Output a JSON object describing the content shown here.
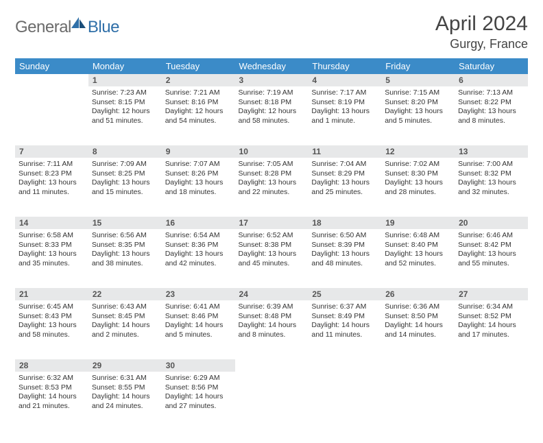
{
  "logo": {
    "general": "General",
    "blue": "Blue"
  },
  "title": "April 2024",
  "location": "Gurgy, France",
  "colors": {
    "header_bg": "#3b8bc8",
    "header_text": "#ffffff",
    "daynum_bg": "#e7e8e9",
    "rule": "#1a3a5c",
    "body_text": "#333333",
    "logo_gray": "#6b6b6b",
    "logo_blue": "#2f6fa8",
    "page_bg": "#ffffff"
  },
  "fonts": {
    "title_size": 30,
    "location_size": 18,
    "header_size": 13,
    "daynum_size": 12,
    "cell_size": 10.5
  },
  "weekdays": [
    "Sunday",
    "Monday",
    "Tuesday",
    "Wednesday",
    "Thursday",
    "Friday",
    "Saturday"
  ],
  "weeks": [
    [
      null,
      {
        "n": "1",
        "sr": "Sunrise: 7:23 AM",
        "ss": "Sunset: 8:15 PM",
        "dl": "Daylight: 12 hours and 51 minutes."
      },
      {
        "n": "2",
        "sr": "Sunrise: 7:21 AM",
        "ss": "Sunset: 8:16 PM",
        "dl": "Daylight: 12 hours and 54 minutes."
      },
      {
        "n": "3",
        "sr": "Sunrise: 7:19 AM",
        "ss": "Sunset: 8:18 PM",
        "dl": "Daylight: 12 hours and 58 minutes."
      },
      {
        "n": "4",
        "sr": "Sunrise: 7:17 AM",
        "ss": "Sunset: 8:19 PM",
        "dl": "Daylight: 13 hours and 1 minute."
      },
      {
        "n": "5",
        "sr": "Sunrise: 7:15 AM",
        "ss": "Sunset: 8:20 PM",
        "dl": "Daylight: 13 hours and 5 minutes."
      },
      {
        "n": "6",
        "sr": "Sunrise: 7:13 AM",
        "ss": "Sunset: 8:22 PM",
        "dl": "Daylight: 13 hours and 8 minutes."
      }
    ],
    [
      {
        "n": "7",
        "sr": "Sunrise: 7:11 AM",
        "ss": "Sunset: 8:23 PM",
        "dl": "Daylight: 13 hours and 11 minutes."
      },
      {
        "n": "8",
        "sr": "Sunrise: 7:09 AM",
        "ss": "Sunset: 8:25 PM",
        "dl": "Daylight: 13 hours and 15 minutes."
      },
      {
        "n": "9",
        "sr": "Sunrise: 7:07 AM",
        "ss": "Sunset: 8:26 PM",
        "dl": "Daylight: 13 hours and 18 minutes."
      },
      {
        "n": "10",
        "sr": "Sunrise: 7:05 AM",
        "ss": "Sunset: 8:28 PM",
        "dl": "Daylight: 13 hours and 22 minutes."
      },
      {
        "n": "11",
        "sr": "Sunrise: 7:04 AM",
        "ss": "Sunset: 8:29 PM",
        "dl": "Daylight: 13 hours and 25 minutes."
      },
      {
        "n": "12",
        "sr": "Sunrise: 7:02 AM",
        "ss": "Sunset: 8:30 PM",
        "dl": "Daylight: 13 hours and 28 minutes."
      },
      {
        "n": "13",
        "sr": "Sunrise: 7:00 AM",
        "ss": "Sunset: 8:32 PM",
        "dl": "Daylight: 13 hours and 32 minutes."
      }
    ],
    [
      {
        "n": "14",
        "sr": "Sunrise: 6:58 AM",
        "ss": "Sunset: 8:33 PM",
        "dl": "Daylight: 13 hours and 35 minutes."
      },
      {
        "n": "15",
        "sr": "Sunrise: 6:56 AM",
        "ss": "Sunset: 8:35 PM",
        "dl": "Daylight: 13 hours and 38 minutes."
      },
      {
        "n": "16",
        "sr": "Sunrise: 6:54 AM",
        "ss": "Sunset: 8:36 PM",
        "dl": "Daylight: 13 hours and 42 minutes."
      },
      {
        "n": "17",
        "sr": "Sunrise: 6:52 AM",
        "ss": "Sunset: 8:38 PM",
        "dl": "Daylight: 13 hours and 45 minutes."
      },
      {
        "n": "18",
        "sr": "Sunrise: 6:50 AM",
        "ss": "Sunset: 8:39 PM",
        "dl": "Daylight: 13 hours and 48 minutes."
      },
      {
        "n": "19",
        "sr": "Sunrise: 6:48 AM",
        "ss": "Sunset: 8:40 PM",
        "dl": "Daylight: 13 hours and 52 minutes."
      },
      {
        "n": "20",
        "sr": "Sunrise: 6:46 AM",
        "ss": "Sunset: 8:42 PM",
        "dl": "Daylight: 13 hours and 55 minutes."
      }
    ],
    [
      {
        "n": "21",
        "sr": "Sunrise: 6:45 AM",
        "ss": "Sunset: 8:43 PM",
        "dl": "Daylight: 13 hours and 58 minutes."
      },
      {
        "n": "22",
        "sr": "Sunrise: 6:43 AM",
        "ss": "Sunset: 8:45 PM",
        "dl": "Daylight: 14 hours and 2 minutes."
      },
      {
        "n": "23",
        "sr": "Sunrise: 6:41 AM",
        "ss": "Sunset: 8:46 PM",
        "dl": "Daylight: 14 hours and 5 minutes."
      },
      {
        "n": "24",
        "sr": "Sunrise: 6:39 AM",
        "ss": "Sunset: 8:48 PM",
        "dl": "Daylight: 14 hours and 8 minutes."
      },
      {
        "n": "25",
        "sr": "Sunrise: 6:37 AM",
        "ss": "Sunset: 8:49 PM",
        "dl": "Daylight: 14 hours and 11 minutes."
      },
      {
        "n": "26",
        "sr": "Sunrise: 6:36 AM",
        "ss": "Sunset: 8:50 PM",
        "dl": "Daylight: 14 hours and 14 minutes."
      },
      {
        "n": "27",
        "sr": "Sunrise: 6:34 AM",
        "ss": "Sunset: 8:52 PM",
        "dl": "Daylight: 14 hours and 17 minutes."
      }
    ],
    [
      {
        "n": "28",
        "sr": "Sunrise: 6:32 AM",
        "ss": "Sunset: 8:53 PM",
        "dl": "Daylight: 14 hours and 21 minutes."
      },
      {
        "n": "29",
        "sr": "Sunrise: 6:31 AM",
        "ss": "Sunset: 8:55 PM",
        "dl": "Daylight: 14 hours and 24 minutes."
      },
      {
        "n": "30",
        "sr": "Sunrise: 6:29 AM",
        "ss": "Sunset: 8:56 PM",
        "dl": "Daylight: 14 hours and 27 minutes."
      },
      null,
      null,
      null,
      null
    ]
  ]
}
